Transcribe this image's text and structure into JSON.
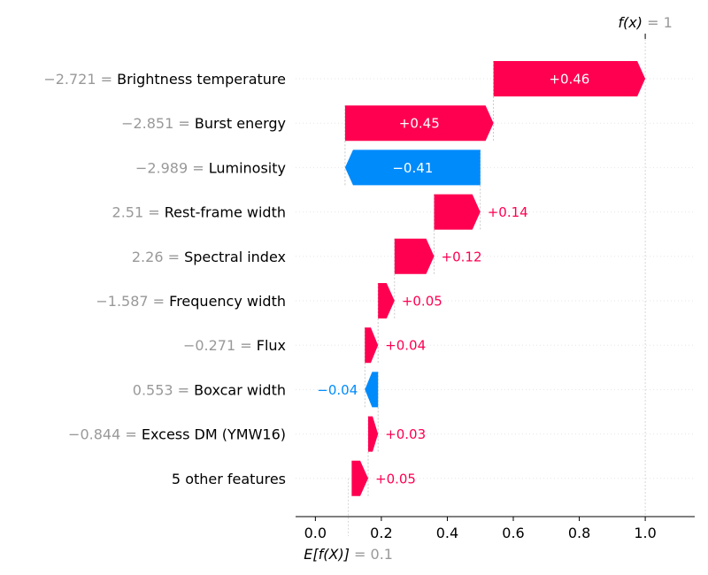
{
  "colors": {
    "positive": "#ff0051",
    "negative": "#008bfb",
    "value_gray": "#999999",
    "grid": "#cccccc",
    "axis": "#000000"
  },
  "chart_data": {
    "type": "waterfall",
    "base_value": 0.1,
    "final_value": 1,
    "base_label": {
      "name": "E[f(X)]",
      "eq": " = 0.1"
    },
    "final_label": {
      "name": "f(x)",
      "eq": " = 1"
    },
    "x_ticks": [
      "0.0",
      "0.2",
      "0.4",
      "0.6",
      "0.8",
      "1.0"
    ],
    "x_tick_values": [
      0.0,
      0.2,
      0.4,
      0.6,
      0.8,
      1.0
    ],
    "xlim": [
      -0.06,
      1.15
    ],
    "features": [
      {
        "value": "−2.721",
        "name": "Brightness temperature",
        "contribution": 0.46,
        "label": "+0.46"
      },
      {
        "value": "−2.851",
        "name": "Burst energy",
        "contribution": 0.45,
        "label": "+0.45"
      },
      {
        "value": "−2.989",
        "name": "Luminosity",
        "contribution": -0.41,
        "label": "−0.41"
      },
      {
        "value": "2.51",
        "name": "Rest-frame width",
        "contribution": 0.14,
        "label": "+0.14"
      },
      {
        "value": "2.26",
        "name": "Spectral index",
        "contribution": 0.12,
        "label": "+0.12"
      },
      {
        "value": "−1.587",
        "name": "Frequency width",
        "contribution": 0.05,
        "label": "+0.05"
      },
      {
        "value": "−0.271",
        "name": "Flux",
        "contribution": 0.04,
        "label": "+0.04"
      },
      {
        "value": "0.553",
        "name": "Boxcar width",
        "contribution": -0.04,
        "label": "−0.04"
      },
      {
        "value": "−0.844",
        "name": "Excess DM (YMW16)",
        "contribution": 0.03,
        "label": "+0.03"
      },
      {
        "value": "",
        "name": "5 other features",
        "contribution": 0.05,
        "label": "+0.05"
      }
    ]
  }
}
